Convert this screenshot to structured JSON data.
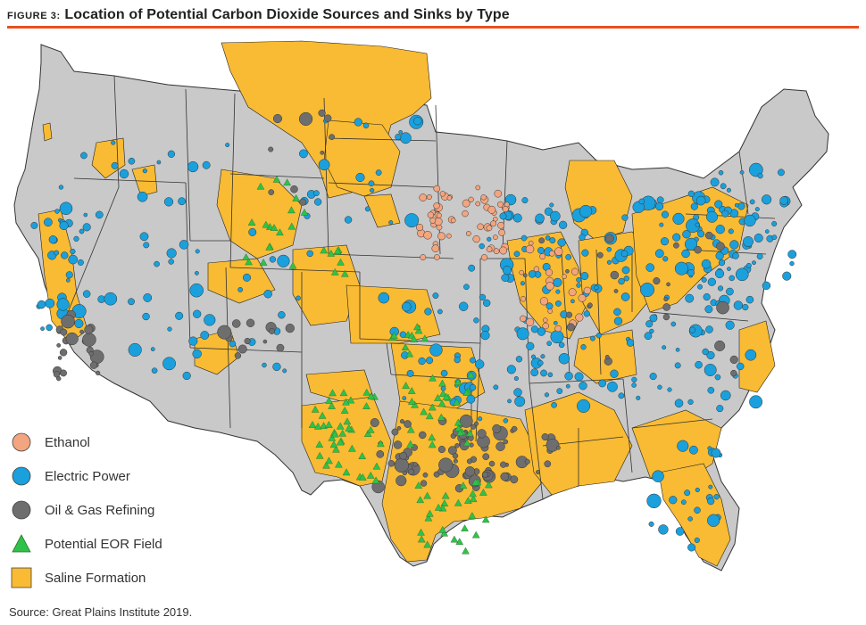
{
  "header": {
    "figure_label": "FIGURE 3:",
    "title": "Location of Potential Carbon Dioxide Sources and Sinks by Type",
    "rule_color": "#e8501e"
  },
  "colors": {
    "land": "#c9c9c9",
    "saline": "#f8bb33",
    "border": "#333333",
    "ethanol": "#f2a57f",
    "electric": "#1aa0dc",
    "refining": "#6e6e6e",
    "eor": "#2fc24a"
  },
  "legend": [
    {
      "key": "ethanol",
      "label": "Ethanol",
      "symbol": "circle"
    },
    {
      "key": "electric",
      "label": "Electric Power",
      "symbol": "circle"
    },
    {
      "key": "refining",
      "label": "Oil & Gas Refining",
      "symbol": "circle"
    },
    {
      "key": "eor",
      "label": "Potential EOR Field",
      "symbol": "triangle"
    },
    {
      "key": "saline",
      "label": "Saline Formation",
      "symbol": "square"
    }
  ],
  "source": "Source: Great Plains Institute 2019."
}
